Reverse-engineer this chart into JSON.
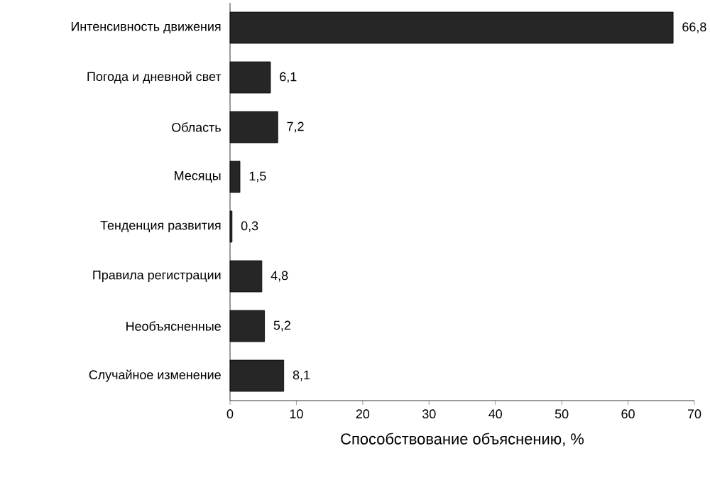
{
  "chart_data": {
    "type": "bar",
    "orientation": "horizontal",
    "xlabel": "Способствование объяснению, %",
    "categories": [
      "Интенсивность движения",
      "Погода и дневной свет",
      "Область",
      "Месяцы",
      "Тенденция развития",
      "Правила регистрации",
      "Необъясненные",
      "Случайное изменение"
    ],
    "values": [
      66.8,
      6.1,
      7.2,
      1.5,
      0.3,
      4.8,
      5.2,
      8.1
    ],
    "value_labels": [
      "66,8",
      "6,1",
      "7,2",
      "1,5",
      "0,3",
      "4,8",
      "5,2",
      "8,1"
    ],
    "color": "#262626",
    "xlim": [
      0,
      70
    ],
    "xticks": [
      0,
      10,
      20,
      30,
      40,
      50,
      60,
      70
    ]
  }
}
